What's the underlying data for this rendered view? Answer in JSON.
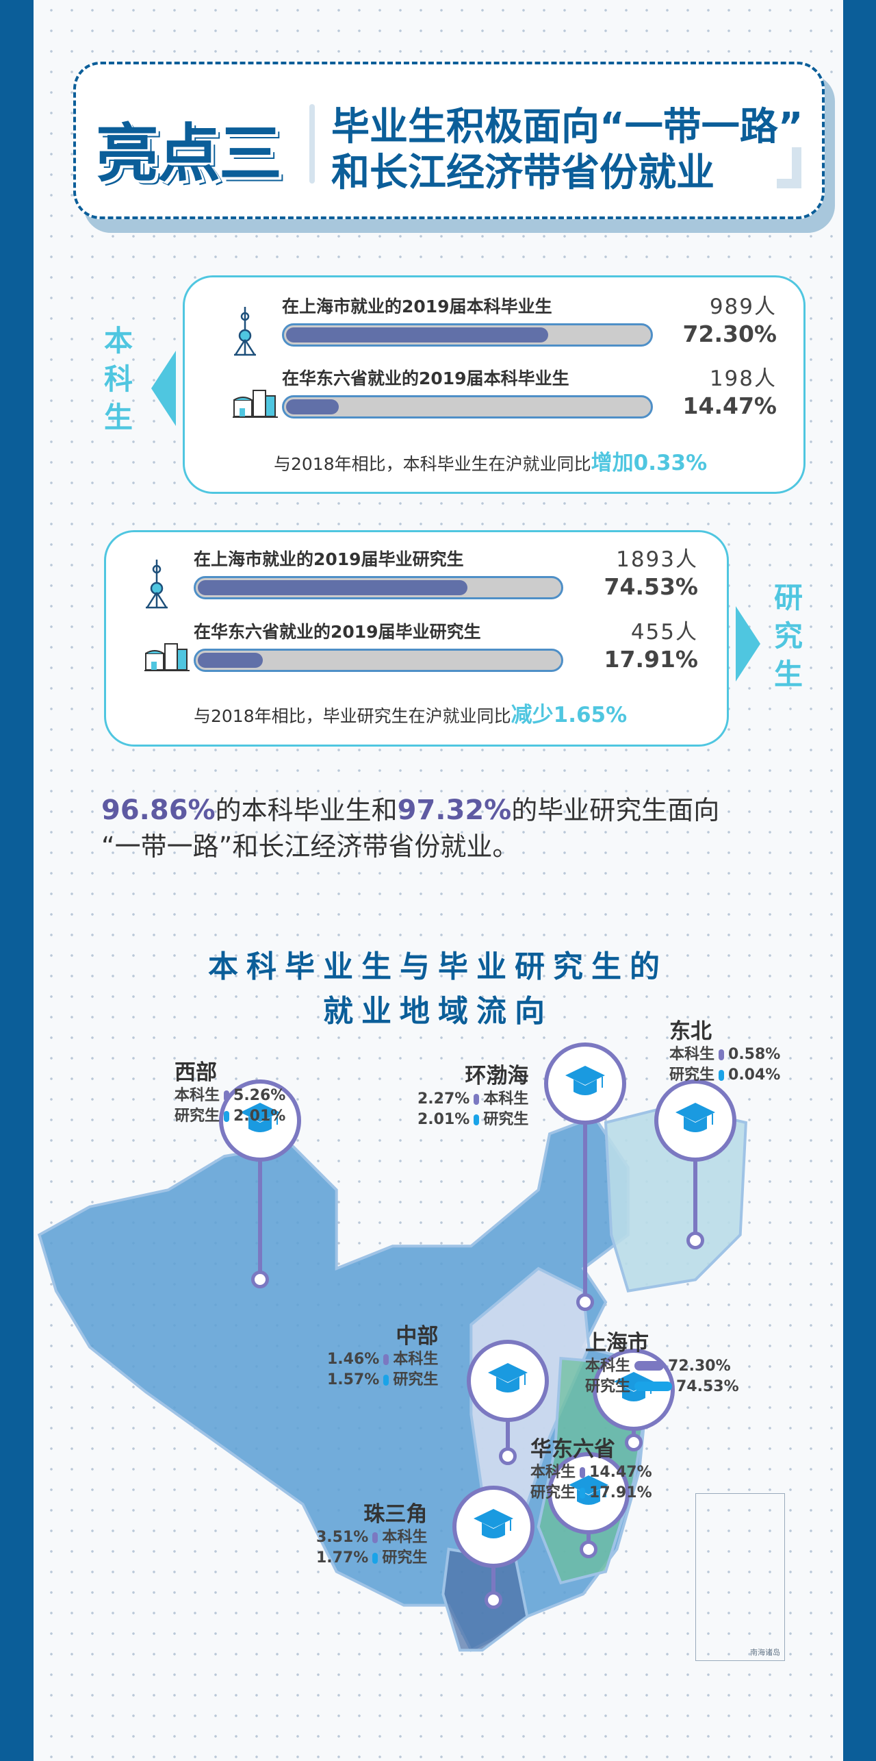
{
  "header": {
    "highlight": "亮点三",
    "title_line1": "毕业生积极面向“一带一路”",
    "title_line2": "和长江经济带省份就业"
  },
  "undergrad": {
    "side_label": "本科生",
    "rows": [
      {
        "label": "在上海市就业的2019届本科毕业生",
        "count": "989人",
        "percent": "72.30%",
        "fill": 72.3,
        "icon": "oriental-pearl-tower-icon"
      },
      {
        "label": "在华东六省就业的2019届本科毕业生",
        "count": "198人",
        "percent": "14.47%",
        "fill": 14.47,
        "icon": "buildings-icon"
      }
    ],
    "compare_text": "与2018年相比，本科毕业生在沪就业同比",
    "compare_value": "增加0.33%"
  },
  "graduate": {
    "side_label": "研究生",
    "rows": [
      {
        "label": "在上海市就业的2019届毕业研究生",
        "count": "1893人",
        "percent": "74.53%",
        "fill": 74.53,
        "icon": "oriental-pearl-tower-icon"
      },
      {
        "label": "在华东六省就业的2019届毕业研究生",
        "count": "455人",
        "percent": "17.91%",
        "fill": 17.91,
        "icon": "buildings-icon"
      }
    ],
    "compare_text": "与2018年相比，毕业研究生在沪就业同比",
    "compare_value": "减少1.65%"
  },
  "summary": {
    "v1": "96.86%",
    "t1": "的本科毕业生和",
    "v2": "97.32%",
    "t2": "的毕业研究生面向",
    "line2": "“一带一路”和长江经济带省份就业。"
  },
  "map": {
    "title_line1": "本科毕业生与毕业研究生的",
    "title_line2": "就业地域流向",
    "ug": "本科生",
    "gr": "研究生",
    "inset_label": "南海诸岛",
    "colors": {
      "undergrad": "#7b78c1",
      "graduate": "#1aa3e8",
      "map": "#5a9fd4"
    },
    "regions": {
      "west": {
        "name": "西部",
        "ug": "5.26%",
        "gr": "2.01%"
      },
      "bohai": {
        "name": "环渤海",
        "ug": "2.27%",
        "gr": "2.01%"
      },
      "northeast": {
        "name": "东北",
        "ug": "0.58%",
        "gr": "0.04%"
      },
      "central": {
        "name": "中部",
        "ug": "1.46%",
        "gr": "1.57%"
      },
      "shanghai": {
        "name": "上海市",
        "ug": "72.30%",
        "gr": "74.53%"
      },
      "east6": {
        "name": "华东六省",
        "ug": "14.47%",
        "gr": "17.91%"
      },
      "prd": {
        "name": "珠三角",
        "ug": "3.51%",
        "gr": "1.77%"
      }
    }
  }
}
